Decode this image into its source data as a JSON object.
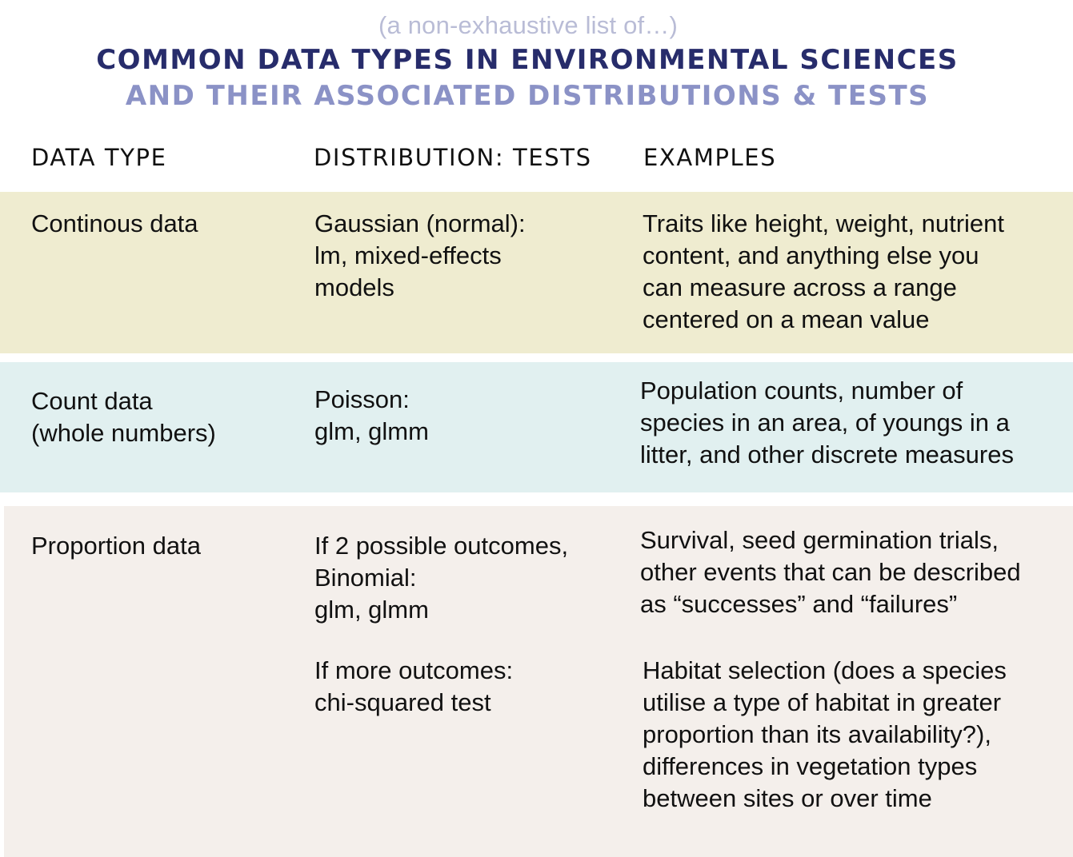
{
  "header": {
    "subtitle": "(a non-exhaustive list of…)",
    "title_line1": "COMMON DATA TYPES IN ENVIRONMENTAL SCIENCES",
    "title_line2": "AND THEIR ASSOCIATED DISTRIBUTIONS & TESTS"
  },
  "columns": {
    "data_type": "DATA TYPE",
    "distribution": "DISTRIBUTION: TESTS",
    "examples": "EXAMPLES"
  },
  "colors": {
    "title_dark": "#272c6b",
    "title_light": "#8b92c6",
    "subtitle": "#b9bcd6",
    "row_continuous": "#efecd0",
    "row_count": "#e1f0f0",
    "row_proportion": "#f4efeb"
  },
  "rows": {
    "continuous": {
      "type": "Continous data",
      "distribution": "Gaussian (normal):\nlm, mixed-effects\nmodels",
      "examples": "Traits like height, weight, nutrient\ncontent, and anything else you\ncan measure across a range\ncentered on a mean value"
    },
    "count": {
      "type": "Count data\n(whole numbers)",
      "distribution": "Poisson:\nglm, glmm",
      "examples": "Population counts, number of\nspecies in an area, of youngs in a\nlitter, and other discrete measures"
    },
    "proportion": {
      "type": "Proportion data",
      "distribution_binomial": "If 2 possible outcomes,\nBinomial:\nglm, glmm",
      "examples_binomial": "Survival, seed germination trials,\nother events that can be described\nas “successes” and “failures”",
      "distribution_multi": "If more outcomes:\nchi-squared test",
      "examples_multi": "Habitat selection (does a species\nutilise a type of habitat in greater\nproportion than its availability?),\ndifferences in vegetation types\nbetween sites or over time"
    }
  }
}
